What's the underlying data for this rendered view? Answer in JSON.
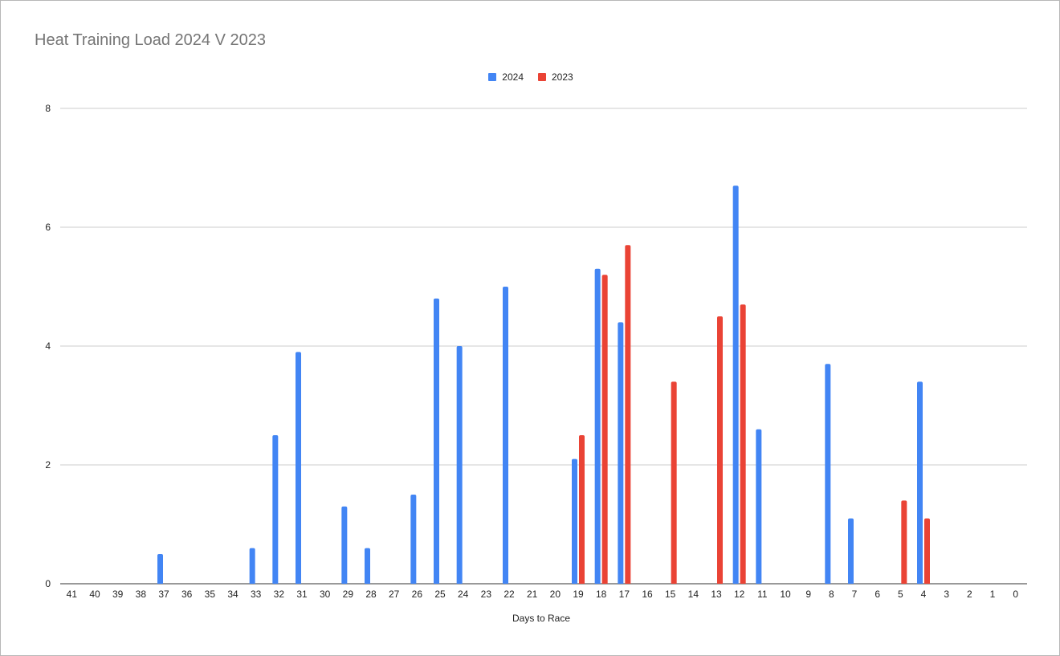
{
  "chart_data": {
    "type": "bar",
    "title": "Heat Training Load 2024 V 2023",
    "xlabel": "Days to Race",
    "ylabel": "",
    "ylim": [
      0,
      8
    ],
    "yticks": [
      0,
      2,
      4,
      6,
      8
    ],
    "grid": true,
    "legend_position": "top-center",
    "categories": [
      "41",
      "40",
      "39",
      "38",
      "37",
      "36",
      "35",
      "34",
      "33",
      "32",
      "31",
      "30",
      "29",
      "28",
      "27",
      "26",
      "25",
      "24",
      "23",
      "22",
      "21",
      "20",
      "19",
      "18",
      "17",
      "16",
      "15",
      "14",
      "13",
      "12",
      "11",
      "10",
      "9",
      "8",
      "7",
      "6",
      "5",
      "4",
      "3",
      "2",
      "1",
      "0"
    ],
    "series": [
      {
        "name": "2024",
        "color": "#4285f4",
        "values": [
          0,
          0,
          0,
          0,
          0.5,
          0,
          0,
          0,
          0.6,
          2.5,
          3.9,
          0,
          1.3,
          0.6,
          0,
          1.5,
          4.8,
          4.0,
          0,
          5.0,
          0,
          0,
          2.1,
          5.3,
          4.4,
          0,
          0,
          0,
          0,
          6.7,
          2.6,
          0,
          0,
          3.7,
          1.1,
          0,
          0,
          3.4,
          0,
          0,
          0,
          0
        ]
      },
      {
        "name": "2023",
        "color": "#ea4335",
        "values": [
          0,
          0,
          0,
          0,
          0,
          0,
          0,
          0,
          0,
          0,
          0,
          0,
          0,
          0,
          0,
          0,
          0,
          0,
          0,
          0,
          0,
          0,
          2.5,
          5.2,
          5.7,
          0,
          3.4,
          0,
          4.5,
          4.7,
          0,
          0,
          0,
          0,
          0,
          0,
          1.4,
          1.1,
          0,
          0,
          0,
          0
        ]
      }
    ]
  }
}
